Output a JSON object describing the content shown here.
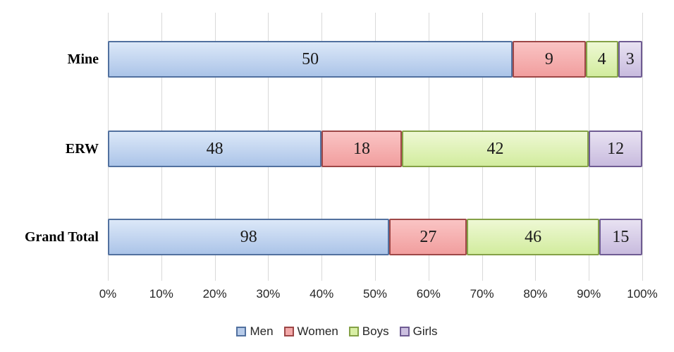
{
  "chart_data": {
    "type": "bar",
    "subtype": "100%-stacked-horizontal",
    "categories": [
      "Mine",
      "ERW",
      "Grand Total"
    ],
    "series": [
      {
        "name": "Men",
        "values": [
          50,
          48,
          98
        ],
        "fill_top": "#dce8f8",
        "fill_bottom": "#abc4e8",
        "border": "#52719f",
        "legend_fill": "#b7cbe9"
      },
      {
        "name": "Women",
        "values": [
          9,
          18,
          27
        ],
        "fill_top": "#fac4c4",
        "fill_bottom": "#f19e9e",
        "border": "#9e4747",
        "legend_fill": "#f2a9a9"
      },
      {
        "name": "Boys",
        "values": [
          4,
          42,
          46
        ],
        "fill_top": "#eef8d4",
        "fill_bottom": "#d2ec9e",
        "border": "#84a147",
        "legend_fill": "#d9efa5"
      },
      {
        "name": "Girls",
        "values": [
          3,
          12,
          15
        ],
        "fill_top": "#e8e2f2",
        "fill_bottom": "#c8bbde",
        "border": "#6f5c93",
        "legend_fill": "#ccc0e0"
      }
    ],
    "x_axis": {
      "tick_labels": [
        "0%",
        "10%",
        "20%",
        "30%",
        "40%",
        "50%",
        "60%",
        "70%",
        "80%",
        "90%",
        "100%"
      ],
      "range_pct": [
        0,
        100
      ],
      "gridlines": true
    },
    "legend": {
      "position": "bottom",
      "entries": [
        "Men",
        "Women",
        "Boys",
        "Girls"
      ]
    },
    "layout": {
      "grid_color": "#d9d9d9",
      "background": "#ffffff"
    }
  }
}
